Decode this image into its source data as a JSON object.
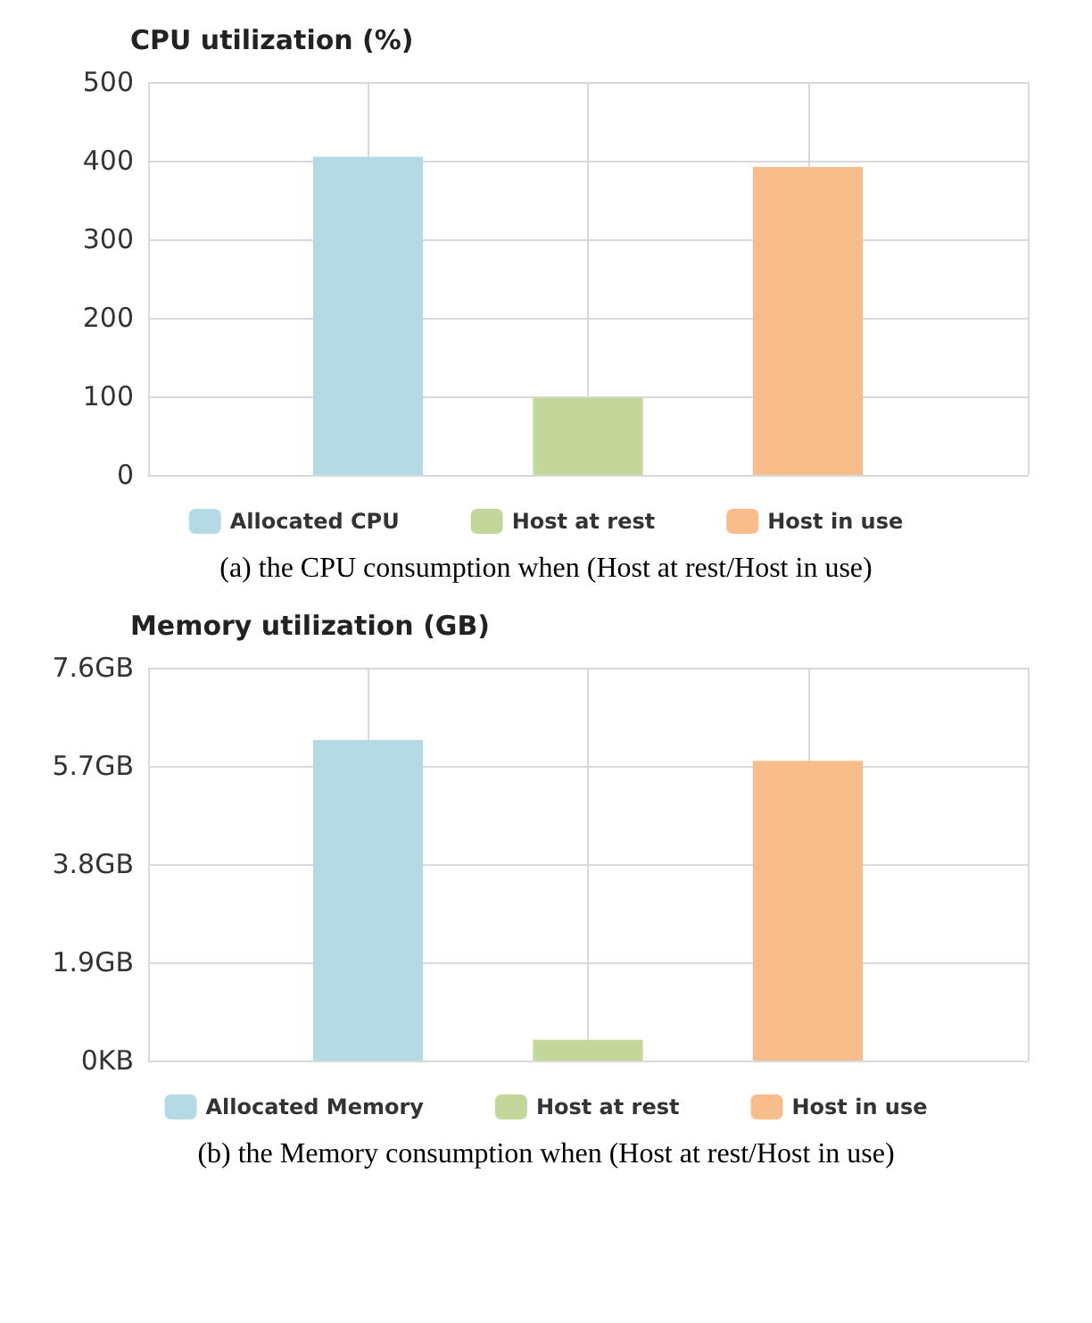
{
  "chart_data": [
    {
      "type": "bar",
      "title": "CPU utilization (%)",
      "categories": [
        null,
        null,
        null,
        null,
        null
      ],
      "series": [
        {
          "name": "Allocated CPU",
          "color": "#b4dbe5",
          "values": [
            null,
            405,
            null,
            null,
            null
          ]
        },
        {
          "name": "Host at rest",
          "color": "#c4d79b",
          "values": [
            null,
            null,
            98,
            null,
            null
          ]
        },
        {
          "name": "Host in use",
          "color": "#f8bd8b",
          "values": [
            null,
            null,
            null,
            392,
            null
          ]
        }
      ],
      "ylim": [
        0,
        500
      ],
      "yticks": [
        0,
        100,
        200,
        300,
        400,
        500
      ],
      "grid": true,
      "legend": "bottom",
      "annotations": [
        "(a) the CPU consumption when (Host at rest/Host in use)"
      ]
    },
    {
      "type": "bar",
      "title": "Memory utilization (GB)",
      "categories": [
        null,
        null,
        null,
        null,
        null
      ],
      "series": [
        {
          "name": "Allocated Memory",
          "color": "#b4dbe5",
          "values": [
            null,
            6.2,
            null,
            null,
            null
          ]
        },
        {
          "name": "Host at rest",
          "color": "#c4d79b",
          "values": [
            null,
            null,
            0.4,
            null,
            null
          ]
        },
        {
          "name": "Host in use",
          "color": "#f8bd8b",
          "values": [
            null,
            null,
            null,
            5.8,
            null
          ]
        }
      ],
      "ylim": [
        0,
        7.6
      ],
      "yticks": [
        {
          "value": 0,
          "label": "0KB"
        },
        {
          "value": 1.9,
          "label": "1.9GB"
        },
        {
          "value": 3.8,
          "label": "3.8GB"
        },
        {
          "value": 5.7,
          "label": "5.7GB"
        },
        {
          "value": 7.6,
          "label": "7.6GB"
        }
      ],
      "grid": true,
      "legend": "bottom",
      "annotations": [
        "(b) the Memory consumption when (Host at rest/Host in use)"
      ]
    }
  ]
}
